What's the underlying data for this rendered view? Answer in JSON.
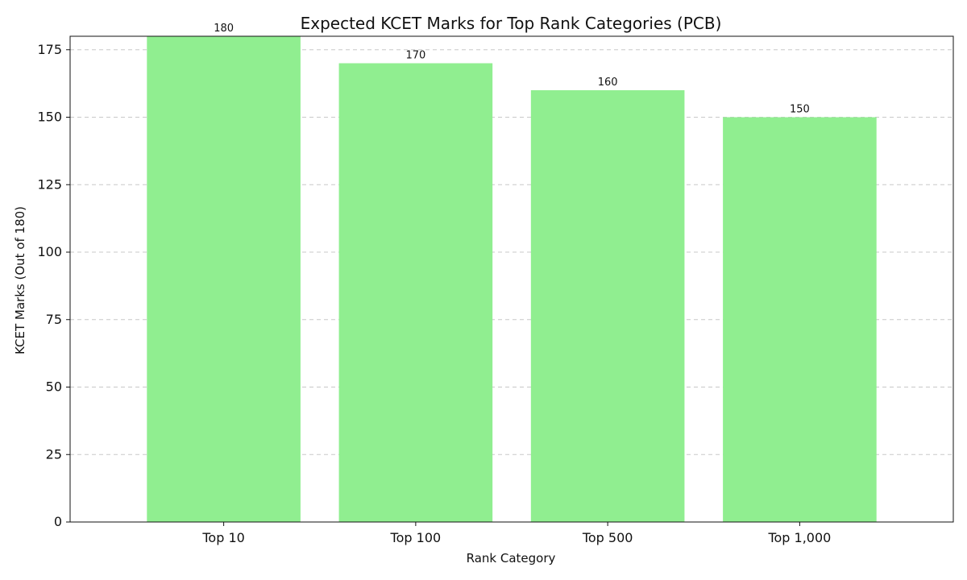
{
  "chart_data": {
    "type": "bar",
    "title": "Expected KCET Marks for Top Rank Categories (PCB)",
    "xlabel": "Rank Category",
    "ylabel": "KCET Marks (Out of 180)",
    "categories": [
      "Top 10",
      "Top 100",
      "Top 500",
      "Top 1,000"
    ],
    "values": [
      180,
      170,
      160,
      150
    ],
    "data_labels": [
      "180",
      "170",
      "160",
      "150"
    ],
    "ylim": [
      0,
      180
    ],
    "yticks": [
      0,
      25,
      50,
      75,
      100,
      125,
      150,
      175
    ],
    "ytick_labels": [
      "0",
      "25",
      "50",
      "75",
      "100",
      "125",
      "150",
      "175"
    ],
    "grid": "y-dashed",
    "colors": {
      "bar": "#90EE90",
      "grid": "#c8c8c8",
      "axis": "#111111",
      "text": "#111111"
    }
  }
}
